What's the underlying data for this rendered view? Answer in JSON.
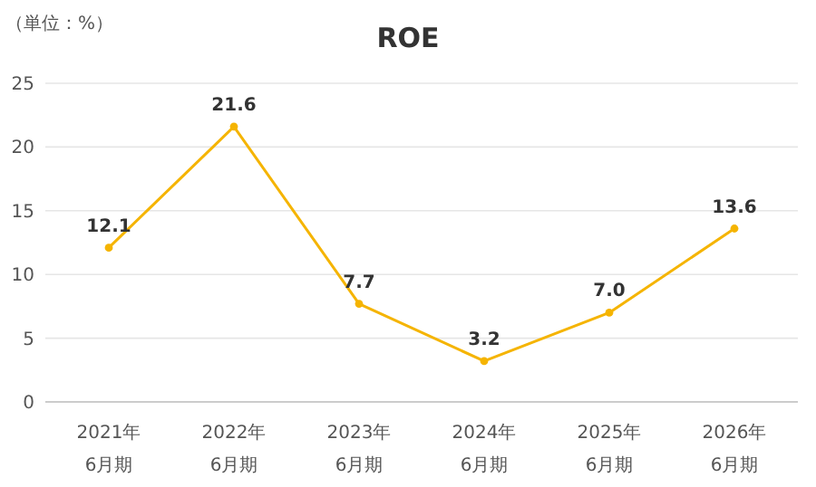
{
  "chart_data": {
    "type": "line",
    "title": "ROE",
    "ylabel": "（単位：%）",
    "categories": [
      "2021年\n6月期",
      "2022年\n6月期",
      "2023年\n6月期",
      "2024年\n6月期",
      "2025年\n6月期",
      "2026年\n6月期"
    ],
    "series": [
      {
        "color": "#f5b400",
        "values": [
          12.1,
          21.6,
          7.7,
          3.2,
          7.0,
          13.6
        ]
      }
    ],
    "value_labels": [
      "12.1",
      "21.6",
      "7.7",
      "3.2",
      "7.0",
      "13.6"
    ],
    "ylim": [
      0,
      25
    ],
    "yticks": [
      0,
      5,
      10,
      15,
      20,
      25
    ],
    "grid": "y",
    "marker": "circle",
    "line_style": "solid"
  }
}
